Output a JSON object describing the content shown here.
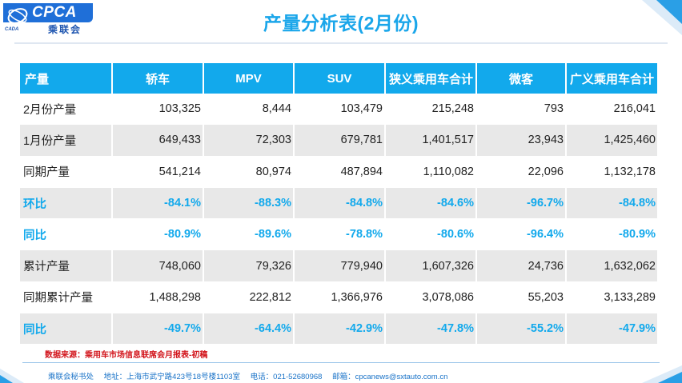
{
  "logo": {
    "text": "CPCA",
    "subtitle": "乘联会",
    "tagline": "CADA"
  },
  "title": "产量分析表(2月份)",
  "table": {
    "headers": [
      "产量",
      "轿车",
      "MPV",
      "SUV",
      "狭义乘用车合计",
      "微客",
      "广义乘用车合计"
    ],
    "rows": [
      {
        "label": "2月份产量",
        "cells": [
          "103,325",
          "8,444",
          "103,479",
          "215,248",
          "793",
          "216,041"
        ]
      },
      {
        "label": "1月份产量",
        "cells": [
          "649,433",
          "72,303",
          "679,781",
          "1,401,517",
          "23,943",
          "1,425,460"
        ]
      },
      {
        "label": "同期产量",
        "cells": [
          "541,214",
          "80,974",
          "487,894",
          "1,110,082",
          "22,096",
          "1,132,178"
        ]
      },
      {
        "label": "环比",
        "cells": [
          "-84.1%",
          "-88.3%",
          "-84.8%",
          "-84.6%",
          "-96.7%",
          "-84.8%"
        ]
      },
      {
        "label": "同比",
        "cells": [
          "-80.9%",
          "-89.6%",
          "-78.8%",
          "-80.6%",
          "-96.4%",
          "-80.9%"
        ]
      },
      {
        "label": "累计产量",
        "cells": [
          "748,060",
          "79,326",
          "779,940",
          "1,607,326",
          "24,736",
          "1,632,062"
        ]
      },
      {
        "label": "同期累计产量",
        "cells": [
          "1,488,298",
          "222,812",
          "1,366,976",
          "3,078,086",
          "55,203",
          "3,133,289"
        ]
      },
      {
        "label": "同比",
        "cells": [
          "-49.7%",
          "-64.4%",
          "-42.9%",
          "-47.8%",
          "-55.2%",
          "-47.9%"
        ]
      }
    ]
  },
  "source_note": "数据来源：乘用车市场信息联席会月报表-初稿",
  "footer": {
    "office": "乘联会秘书处",
    "address": "地址：上海市武宁路423号18号楼1103室",
    "phone": "电话：021-52680968",
    "email": "邮箱：cpcanews@sxtauto.com.cn"
  },
  "colors": {
    "accent": "#12a9ec",
    "source_red": "#d2141b",
    "row_alt": "#e8e8e8"
  }
}
